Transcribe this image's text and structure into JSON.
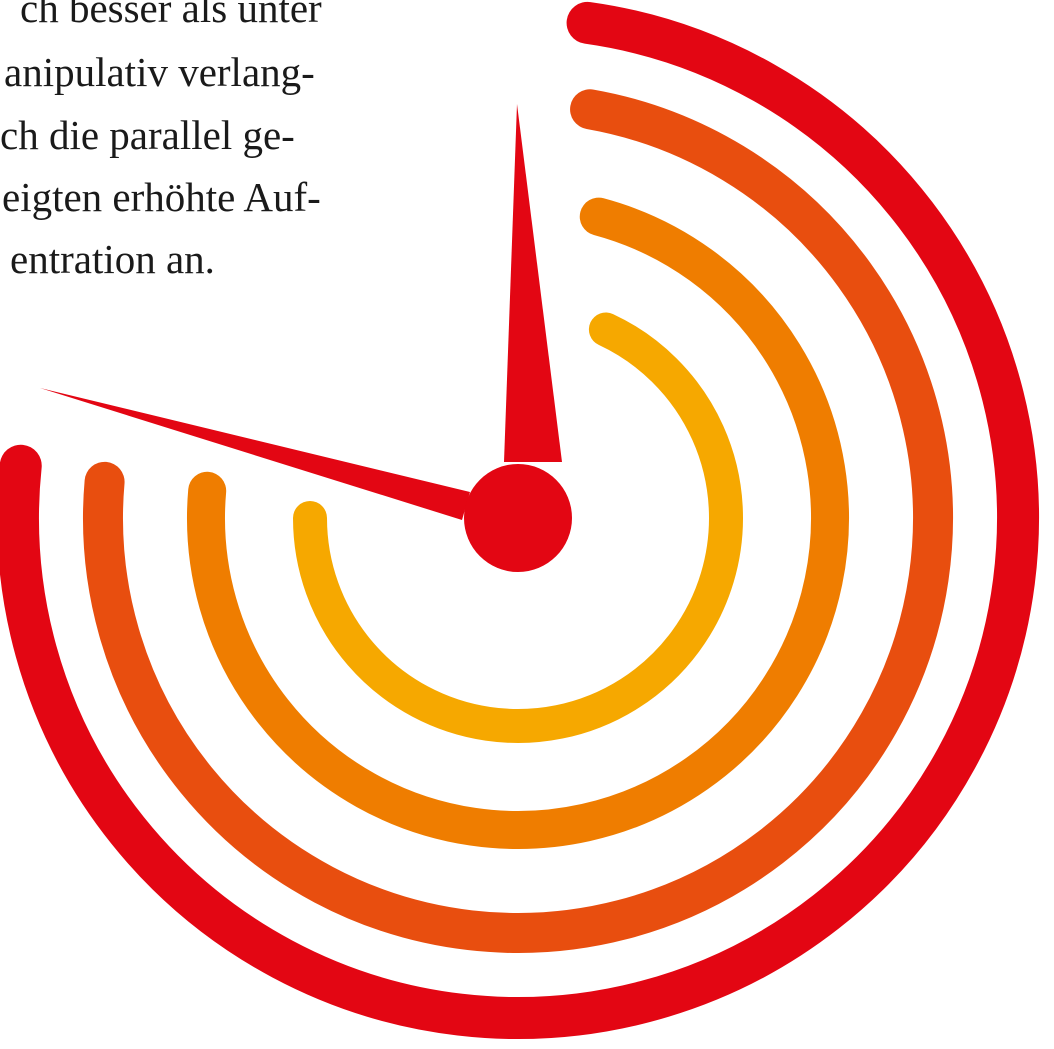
{
  "text": {
    "lines": [
      "ch besser als unter",
      "anipulativ verlang-",
      "ch die parallel ge-",
      "eigten erhöhte Auf-",
      "entration an."
    ]
  }
}
